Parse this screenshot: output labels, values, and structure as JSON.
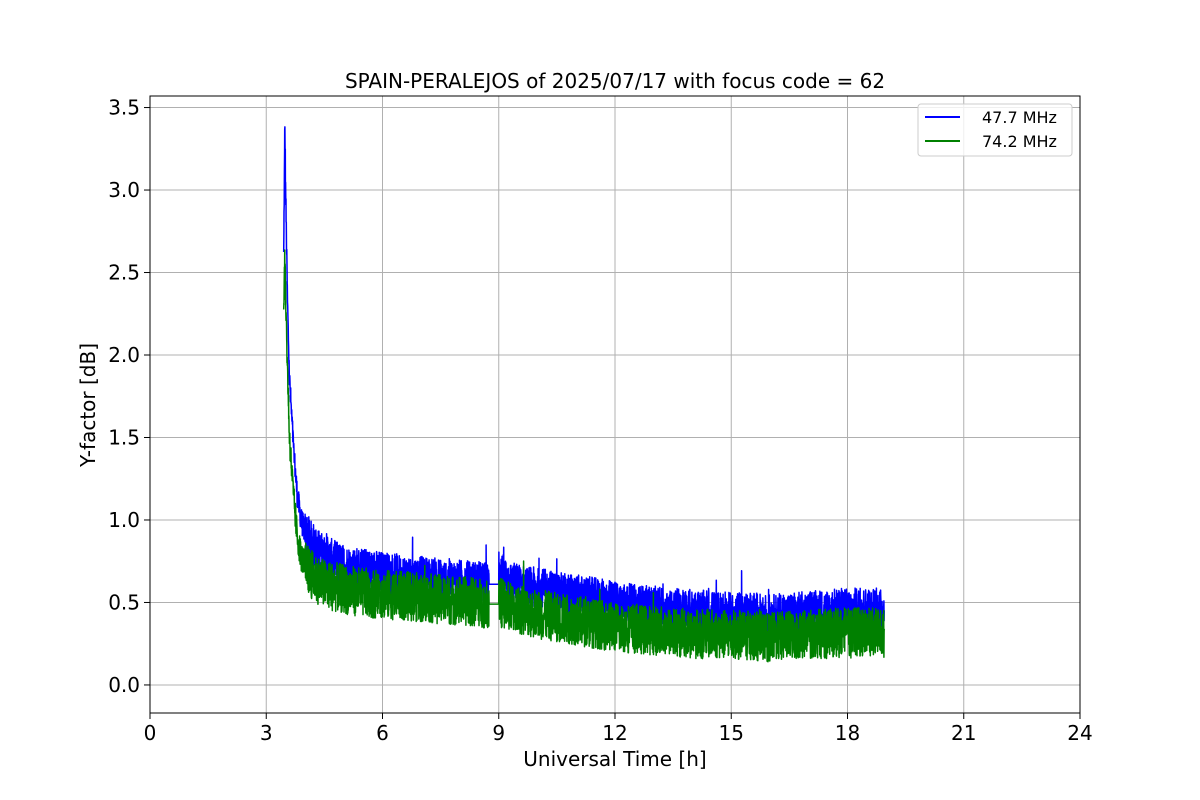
{
  "chart_data": {
    "type": "line",
    "title": "SPAIN-PERALEJOS of 2025/07/17 with focus code = 62",
    "xlabel": "Universal Time [h]",
    "ylabel": "Y-factor [dB]",
    "xlim": [
      0,
      24
    ],
    "ylim": [
      -0.17,
      3.57
    ],
    "xticks": [
      0,
      3,
      6,
      9,
      12,
      15,
      18,
      21,
      24
    ],
    "xtick_labels": [
      "0",
      "3",
      "6",
      "9",
      "12",
      "15",
      "18",
      "21",
      "24"
    ],
    "yticks": [
      0.0,
      0.5,
      1.0,
      1.5,
      2.0,
      2.5,
      3.0,
      3.5
    ],
    "ytick_labels": [
      "0.0",
      "0.5",
      "1.0",
      "1.5",
      "2.0",
      "2.5",
      "3.0",
      "3.5"
    ],
    "grid": true,
    "legend_position": "top-right",
    "series": [
      {
        "name": "47.7 MHz",
        "color": "#0000ff",
        "x": [
          3.45,
          3.48,
          3.5,
          3.55,
          3.6,
          3.7,
          3.8,
          3.9,
          4.0,
          4.2,
          4.5,
          5.0,
          5.5,
          6.0,
          6.5,
          7.0,
          7.5,
          8.0,
          8.5,
          8.75,
          9.0,
          9.05,
          9.3,
          9.6,
          10.0,
          10.5,
          11.0,
          11.5,
          12.0,
          12.5,
          13.0,
          13.5,
          14.0,
          14.5,
          15.0,
          15.5,
          16.0,
          16.5,
          17.0,
          17.5,
          18.0,
          18.5,
          18.95
        ],
        "y": [
          2.6,
          3.4,
          3.0,
          2.3,
          1.85,
          1.45,
          1.15,
          1.0,
          0.93,
          0.85,
          0.78,
          0.72,
          0.7,
          0.68,
          0.66,
          0.65,
          0.64,
          0.63,
          0.62,
          0.61,
          0.8,
          0.68,
          0.62,
          0.6,
          0.58,
          0.56,
          0.54,
          0.52,
          0.5,
          0.48,
          0.47,
          0.46,
          0.45,
          0.44,
          0.43,
          0.43,
          0.42,
          0.43,
          0.44,
          0.45,
          0.46,
          0.46,
          0.45
        ]
      },
      {
        "name": "74.2 MHz",
        "color": "#008000",
        "x": [
          3.45,
          3.48,
          3.5,
          3.55,
          3.6,
          3.7,
          3.8,
          3.9,
          4.0,
          4.2,
          4.5,
          5.0,
          5.5,
          6.0,
          6.5,
          7.0,
          7.5,
          8.0,
          8.5,
          8.75,
          9.0,
          9.05,
          9.3,
          9.6,
          10.0,
          10.5,
          11.0,
          11.5,
          12.0,
          12.5,
          13.0,
          13.5,
          14.0,
          14.5,
          15.0,
          15.5,
          16.0,
          16.5,
          17.0,
          17.5,
          18.0,
          18.5,
          18.95
        ],
        "y": [
          2.3,
          2.6,
          2.35,
          1.9,
          1.5,
          1.15,
          0.9,
          0.78,
          0.72,
          0.66,
          0.61,
          0.58,
          0.56,
          0.55,
          0.54,
          0.53,
          0.52,
          0.51,
          0.5,
          0.49,
          0.52,
          0.5,
          0.47,
          0.45,
          0.43,
          0.41,
          0.39,
          0.37,
          0.35,
          0.34,
          0.33,
          0.32,
          0.31,
          0.31,
          0.3,
          0.3,
          0.29,
          0.3,
          0.31,
          0.31,
          0.32,
          0.32,
          0.31
        ]
      }
    ]
  }
}
